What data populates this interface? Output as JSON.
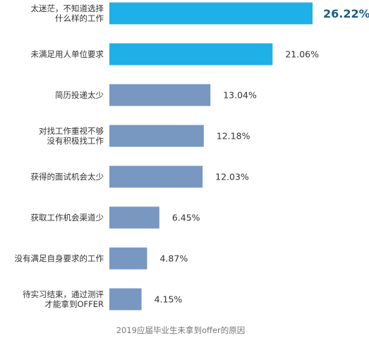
{
  "chart_data": {
    "type": "bar",
    "orientation": "horizontal",
    "categories": [
      [
        "太迷茫，不知道选择",
        "什么样的工作"
      ],
      [
        "未满足用人单位要求"
      ],
      [
        "简历投递太少"
      ],
      [
        "对找工作重视不够",
        "没有积极找工作"
      ],
      [
        "获得的面试机会太少"
      ],
      [
        "获取工作机会渠道少"
      ],
      [
        "没有满足自身要求的工作"
      ],
      [
        "待实习结束，通过测评",
        "才能拿到OFFER"
      ]
    ],
    "values": [
      26.22,
      21.06,
      13.04,
      12.18,
      12.03,
      6.45,
      4.87,
      4.15
    ],
    "value_labels": [
      "26.22%",
      "21.06%",
      "13.04%",
      "12.18%",
      "12.03%",
      "6.45%",
      "4.87%",
      "4.15%"
    ],
    "highlighted": [
      true,
      true,
      false,
      false,
      false,
      false,
      false,
      false
    ],
    "xlim": [
      0,
      26.22
    ],
    "grid": false,
    "legend": "none",
    "caption": "2019应届毕业生未拿到offer的原因"
  },
  "colors": {
    "highlight_bar": "#1eb0e6",
    "normal_bar": "#7897c1",
    "highlight_label": "#1f5a8a",
    "label_text": "#333333",
    "caption_text": "#777777"
  }
}
